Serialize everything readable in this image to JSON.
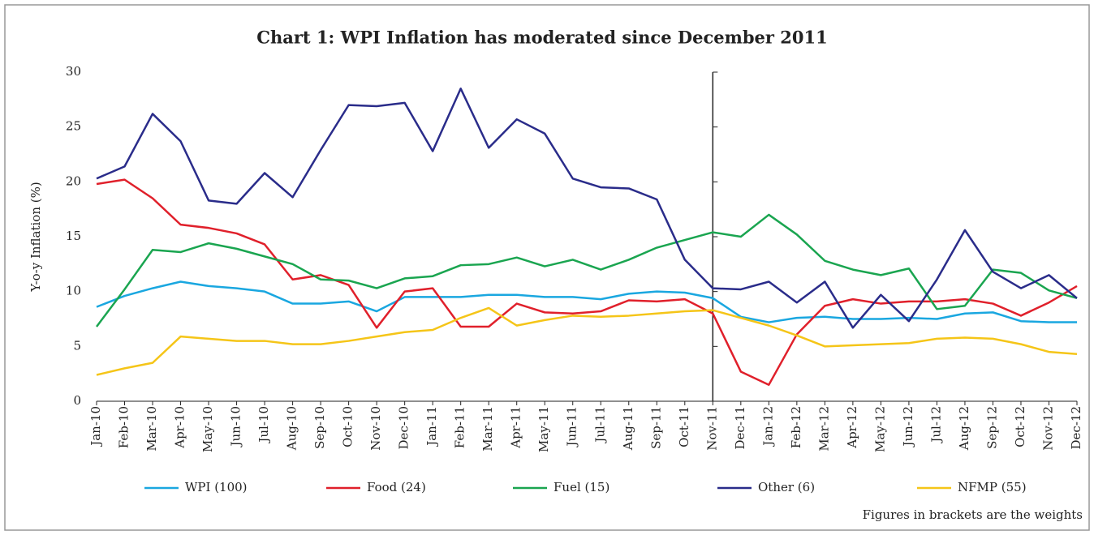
{
  "chart_data": {
    "type": "line",
    "title": "Chart 1: WPI Inflation has moderated since December 2011",
    "y_label": "Y-o-y Inflation (%)",
    "note": "Figures in brackets are the weights",
    "categories": [
      "Jan-10",
      "Feb-10",
      "Mar-10",
      "Apr-10",
      "May-10",
      "Jun-10",
      "Jul-10",
      "Aug-10",
      "Sep-10",
      "Oct-10",
      "Nov-10",
      "Dec-10",
      "Jan-11",
      "Feb-11",
      "Mar-11",
      "Apr-11",
      "May-11",
      "Jun-11",
      "Jul-11",
      "Aug-11",
      "Sep-11",
      "Oct-11",
      "Nov-11",
      "Dec-11",
      "Jan-12",
      "Feb-12",
      "Mar-12",
      "Apr-12",
      "May-12",
      "Jun-12",
      "Jul-12",
      "Aug-12",
      "Sep-12",
      "Oct-12",
      "Nov-12",
      "Dec-12"
    ],
    "series": [
      {
        "name": "WPI (100)",
        "color": "#1aa7e0",
        "values": [
          8.6,
          9.6,
          10.3,
          10.9,
          10.5,
          10.3,
          10.0,
          8.9,
          8.9,
          9.1,
          8.2,
          9.5,
          9.5,
          9.5,
          9.7,
          9.7,
          9.5,
          9.5,
          9.3,
          9.8,
          10.0,
          9.9,
          9.4,
          7.7,
          7.2,
          7.6,
          7.7,
          7.5,
          7.5,
          7.6,
          7.5,
          8.0,
          8.1,
          7.3,
          7.2,
          7.2
        ]
      },
      {
        "name": "Food (24)",
        "color": "#e0202b",
        "values": [
          19.8,
          20.2,
          18.5,
          16.1,
          15.8,
          15.3,
          14.3,
          11.1,
          11.5,
          10.6,
          6.7,
          10.0,
          10.3,
          6.8,
          6.8,
          8.9,
          8.1,
          8.0,
          8.2,
          9.2,
          9.1,
          9.3,
          8.0,
          2.7,
          1.5,
          6.1,
          8.7,
          9.3,
          8.9,
          9.1,
          9.1,
          9.3,
          8.9,
          7.8,
          9.0,
          10.5
        ]
      },
      {
        "name": "Fuel (15)",
        "color": "#1aa550",
        "values": [
          6.8,
          10.2,
          13.8,
          13.6,
          14.4,
          13.9,
          13.2,
          12.5,
          11.1,
          11.0,
          10.3,
          11.2,
          11.4,
          12.4,
          12.5,
          13.1,
          12.3,
          12.9,
          12.0,
          12.9,
          14.0,
          14.7,
          15.4,
          15.0,
          17.0,
          15.2,
          12.8,
          12.0,
          11.5,
          12.1,
          8.4,
          8.7,
          12.0,
          11.7,
          10.1,
          9.4
        ]
      },
      {
        "name": "Other (6)",
        "color": "#2a2c8a",
        "values": [
          20.3,
          21.4,
          26.2,
          23.7,
          18.3,
          18.0,
          20.8,
          18.6,
          22.9,
          27.0,
          26.9,
          27.2,
          22.8,
          28.5,
          23.1,
          25.7,
          24.4,
          20.3,
          19.5,
          19.4,
          18.4,
          12.9,
          10.3,
          10.2,
          10.9,
          9.0,
          10.9,
          6.7,
          9.7,
          7.3,
          11.1,
          15.6,
          11.8,
          10.3,
          11.5,
          9.4
        ]
      },
      {
        "name": "NFMP (55)",
        "color": "#f5c518",
        "values": [
          2.4,
          3.0,
          3.5,
          5.9,
          5.7,
          5.5,
          5.5,
          5.2,
          5.2,
          5.5,
          5.9,
          6.3,
          6.5,
          7.6,
          8.5,
          6.9,
          7.4,
          7.8,
          7.7,
          7.8,
          8.0,
          8.2,
          8.3,
          7.6,
          6.9,
          6.0,
          5.0,
          5.1,
          5.2,
          5.3,
          5.7,
          5.8,
          5.7,
          5.2,
          4.5,
          4.3
        ]
      }
    ],
    "ylim": [
      0,
      30
    ],
    "yticks": [
      0,
      5,
      10,
      15,
      20,
      25,
      30
    ],
    "vline_at": "Nov-11",
    "legend": "bottom"
  }
}
